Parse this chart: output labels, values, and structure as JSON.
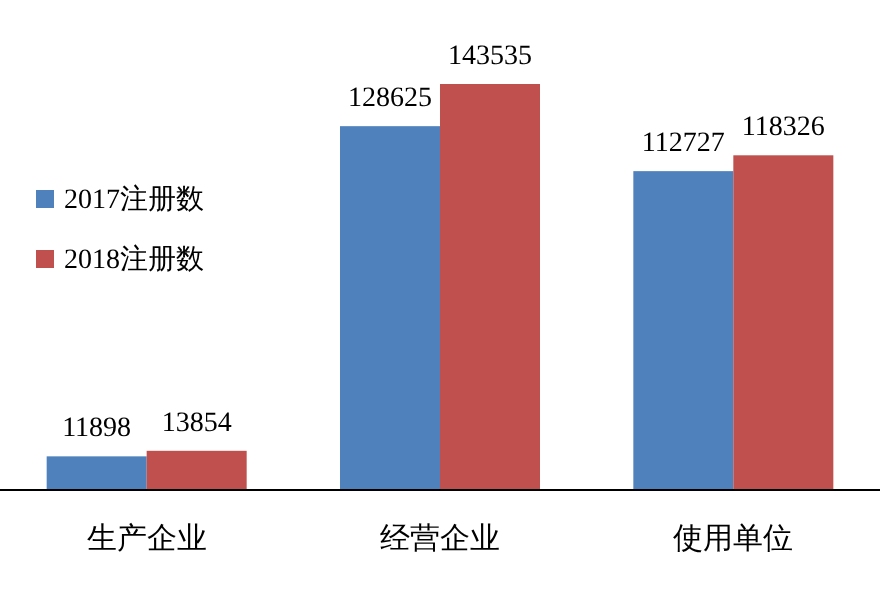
{
  "chart_data": {
    "type": "bar",
    "categories": [
      "生产企业",
      "经营企业",
      "使用单位"
    ],
    "series": [
      {
        "name": "2017注册数",
        "color": "#4f81bd",
        "values": [
          11898,
          128625,
          112727
        ]
      },
      {
        "name": "2018注册数",
        "color": "#c0504d",
        "values": [
          13854,
          143535,
          118326
        ]
      }
    ],
    "data_labels": true,
    "legend": "left"
  }
}
